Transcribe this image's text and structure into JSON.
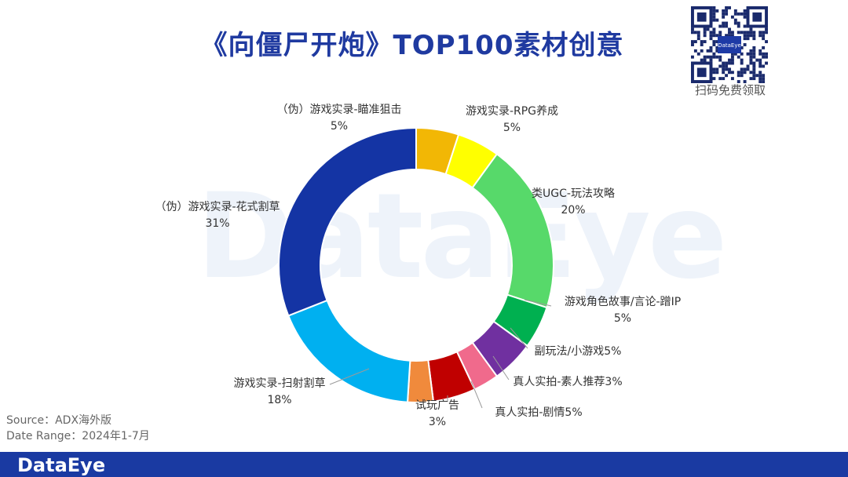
{
  "header": {
    "title": "《向僵尸开炮》TOP100素材创意"
  },
  "watermark": "DataEye",
  "qr": {
    "caption": "扫码免费领取",
    "center_logo": "DataEye"
  },
  "source": {
    "line1": "Source：ADX海外版",
    "line2": "Date Range：2024年1-7月"
  },
  "footer": {
    "logo": "DataEye"
  },
  "chart_data": {
    "type": "donut",
    "title": "《向僵尸开炮》TOP100素材创意",
    "series": [
      {
        "label": "（伪）游戏实录-瞄准狙击",
        "value": 5,
        "pct_label": "5%",
        "color": "#f2b705"
      },
      {
        "label": "游戏实录-RPG养成",
        "value": 5,
        "pct_label": "5%",
        "color": "#ffff00"
      },
      {
        "label": "类UGC-玩法攻略",
        "value": 20,
        "pct_label": "20%",
        "color": "#57d96a"
      },
      {
        "label": "游戏角色故事/言论-蹭IP",
        "value": 5,
        "pct_label": "5%",
        "color": "#00b050"
      },
      {
        "label": "副玩法/小游戏5%",
        "value": 5,
        "pct_label": "",
        "color": "#7030a0"
      },
      {
        "label": "真人实拍-素人推荐3%",
        "value": 3,
        "pct_label": "",
        "color": "#f06a8c"
      },
      {
        "label": "真人实拍-剧情5%",
        "value": 5,
        "pct_label": "",
        "color": "#c00000"
      },
      {
        "label": "试玩广告",
        "value": 3,
        "pct_label": "3%",
        "color": "#f08a3c"
      },
      {
        "label": "游戏实录-扫射割草",
        "value": 18,
        "pct_label": "18%",
        "color": "#00b0f0"
      },
      {
        "label": "（伪）游戏实录-花式割草",
        "value": 31,
        "pct_label": "31%",
        "color": "#1434a4"
      }
    ]
  }
}
